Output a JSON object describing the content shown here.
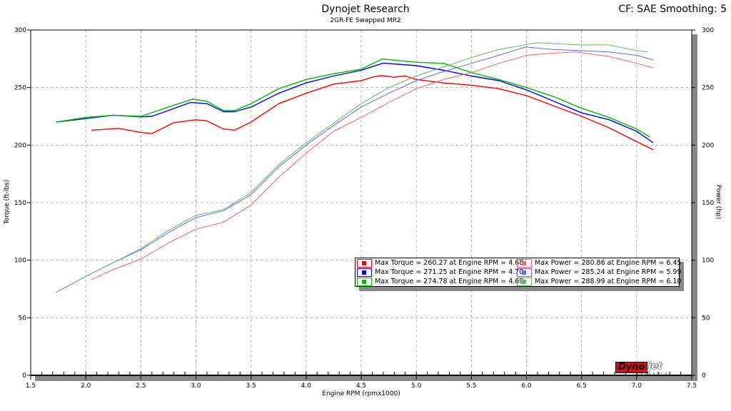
{
  "header": {
    "title": "Dynojet Research",
    "subtitle": "2GR-FE Swapped MR2",
    "right_info": "CF: SAE Smoothing: 5"
  },
  "logo_text": "Dynojet Research",
  "chart_data": {
    "type": "line",
    "title": "Dynojet Research",
    "subtitle": "2GR-FE Swapped MR2",
    "xlabel": "Engine RPM (rpmx1000)",
    "ylabel": "Torque (ft-lbs)",
    "y2label": "Power (hp)",
    "xlim": [
      1.5,
      7.5
    ],
    "ylim": [
      0,
      300
    ],
    "y2lim": [
      0,
      300
    ],
    "xticks": [
      "1.5",
      "2.0",
      "2.5",
      "3.0",
      "3.5",
      "4.0",
      "4.5",
      "5.0",
      "5.5",
      "6.0",
      "6.5",
      "7.0",
      "7.5"
    ],
    "yticks": [
      "0",
      "50",
      "100",
      "150",
      "200",
      "250",
      "300"
    ],
    "grid": true,
    "legend_position": "center-right",
    "series": [
      {
        "name": "Max Torque = 260.27 at Engine RPM = 4.68",
        "kind": "torque",
        "color": "#ff0000",
        "x": [
          2.05,
          2.3,
          2.5,
          2.6,
          2.8,
          3.0,
          3.1,
          3.25,
          3.35,
          3.5,
          3.75,
          4.0,
          4.25,
          4.5,
          4.6,
          4.68,
          4.8,
          4.9,
          5.0,
          5.25,
          5.5,
          5.75,
          6.0,
          6.25,
          6.5,
          6.75,
          7.0,
          7.15
        ],
        "y": [
          213,
          214.5,
          211,
          210,
          219.5,
          222,
          221,
          214,
          213,
          220,
          236,
          245,
          253,
          256,
          259,
          260.3,
          259,
          260,
          257,
          254,
          252,
          249,
          243,
          234,
          225,
          215,
          203,
          196
        ]
      },
      {
        "name": "Max Torque = 271.25 at Engine RPM = 4.70",
        "kind": "torque",
        "color": "#0000ff",
        "x": [
          1.73,
          2.0,
          2.25,
          2.5,
          2.6,
          2.75,
          2.95,
          3.1,
          3.25,
          3.35,
          3.5,
          3.75,
          4.0,
          4.25,
          4.5,
          4.7,
          5.0,
          5.25,
          5.5,
          5.75,
          6.0,
          6.25,
          6.5,
          6.75,
          7.0,
          7.15
        ],
        "y": [
          220,
          223,
          226,
          224.5,
          225,
          230,
          237,
          236,
          229,
          229,
          233,
          245,
          254,
          260,
          265,
          271.25,
          269,
          265,
          260,
          256,
          248,
          238,
          228,
          222,
          212,
          202
        ]
      },
      {
        "name": "Max Torque = 274.78 at Engine RPM = 4.69",
        "kind": "torque",
        "color": "#00bb00",
        "x": [
          1.73,
          2.0,
          2.25,
          2.5,
          2.75,
          2.97,
          3.1,
          3.25,
          3.35,
          3.5,
          3.75,
          4.0,
          4.25,
          4.5,
          4.69,
          5.0,
          5.25,
          5.5,
          5.75,
          6.0,
          6.25,
          6.5,
          6.75,
          7.0,
          7.12
        ],
        "y": [
          220,
          224,
          226,
          225,
          233,
          240,
          238,
          230,
          230,
          236,
          249,
          257,
          262,
          266,
          274.78,
          272,
          271,
          263,
          257,
          250,
          242,
          232,
          224,
          214,
          207
        ]
      },
      {
        "name": "Max Power = 280.86 at Engine RPM = 6.45",
        "kind": "power",
        "color": "#ff6666",
        "x": [
          2.05,
          2.25,
          2.5,
          2.75,
          3.0,
          3.25,
          3.5,
          3.75,
          4.0,
          4.25,
          4.5,
          4.75,
          5.0,
          5.25,
          5.5,
          5.75,
          6.0,
          6.25,
          6.45,
          6.75,
          7.0,
          7.15
        ],
        "y": [
          83,
          92,
          101,
          115,
          127,
          133,
          148,
          172,
          193,
          212,
          224,
          237,
          249,
          257,
          263,
          271,
          278,
          280,
          280.86,
          277,
          271,
          267
        ]
      },
      {
        "name": "Max Power = 285.24 at Engine RPM = 5.99",
        "kind": "power",
        "color": "#6666ff",
        "x": [
          1.73,
          2.0,
          2.25,
          2.5,
          2.75,
          3.0,
          3.25,
          3.5,
          3.75,
          4.0,
          4.25,
          4.5,
          4.75,
          5.0,
          5.25,
          5.5,
          5.75,
          5.99,
          6.25,
          6.5,
          6.75,
          7.0,
          7.15
        ],
        "y": [
          72,
          86,
          98,
          109,
          124,
          137,
          143,
          157,
          181,
          200,
          217,
          233,
          245,
          256,
          264,
          271,
          278,
          285.24,
          283,
          282,
          281,
          278,
          274
        ]
      },
      {
        "name": "Max Power = 288.99 at Engine RPM = 6.10",
        "kind": "power",
        "color": "#66bb66",
        "x": [
          1.73,
          2.0,
          2.25,
          2.5,
          2.75,
          3.0,
          3.25,
          3.5,
          3.75,
          4.0,
          4.25,
          4.5,
          4.75,
          5.0,
          5.25,
          5.5,
          5.75,
          6.1,
          6.5,
          6.75,
          7.0,
          7.1
        ],
        "y": [
          72,
          86,
          98,
          110,
          126,
          139,
          144,
          159,
          183,
          202,
          219,
          236,
          250,
          260,
          268,
          276,
          283,
          288.99,
          287,
          287,
          282,
          281
        ]
      }
    ]
  }
}
